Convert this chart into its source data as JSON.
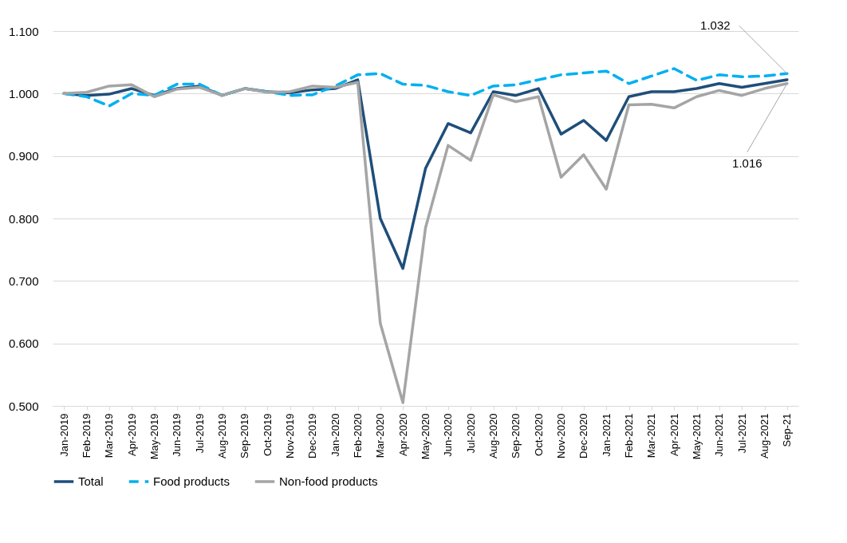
{
  "chart_data": {
    "type": "line",
    "categories": [
      "Jan-2019",
      "Feb-2019",
      "Mar-2019",
      "Apr-2019",
      "May-2019",
      "Jun-2019",
      "Jul-2019",
      "Aug-2019",
      "Sep-2019",
      "Oct-2019",
      "Nov-2019",
      "Dec-2019",
      "Jan-2020",
      "Feb-2020",
      "Mar-2020",
      "Apr-2020",
      "May-2020",
      "Jun-2020",
      "Jul-2020",
      "Aug-2020",
      "Sep-2020",
      "Oct-2020",
      "Nov-2020",
      "Dec-2020",
      "Jan-2021",
      "Feb-2021",
      "Mar-2021",
      "Apr-2021",
      "May-2021",
      "Jun-2021",
      "Jul-2021",
      "Aug-2021",
      "Sep-21"
    ],
    "series": [
      {
        "name": "Total",
        "color": "#1f4e79",
        "line_style": "solid",
        "values": [
          1.0,
          0.997,
          0.999,
          1.008,
          0.997,
          1.008,
          1.012,
          0.997,
          1.008,
          1.003,
          1.001,
          1.006,
          1.008,
          1.022,
          0.8,
          0.72,
          0.88,
          0.952,
          0.937,
          1.003,
          0.997,
          1.008,
          0.935,
          0.957,
          0.925,
          0.995,
          1.003,
          1.003,
          1.008,
          1.016,
          1.01,
          1.016,
          1.022
        ]
      },
      {
        "name": "Food products",
        "color": "#00b0f0",
        "line_style": "dashed",
        "values": [
          1.0,
          0.995,
          0.98,
          1.0,
          0.997,
          1.015,
          1.015,
          0.997,
          1.008,
          1.003,
          0.997,
          0.998,
          1.012,
          1.03,
          1.032,
          1.015,
          1.013,
          1.003,
          0.997,
          1.012,
          1.014,
          1.022,
          1.03,
          1.033,
          1.036,
          1.016,
          1.028,
          1.04,
          1.021,
          1.03,
          1.027,
          1.028,
          1.032
        ]
      },
      {
        "name": "Non-food products",
        "color": "#a5a5a5",
        "line_style": "solid",
        "values": [
          1.0,
          1.002,
          1.012,
          1.014,
          0.995,
          1.007,
          1.01,
          0.997,
          1.008,
          1.002,
          1.003,
          1.012,
          1.01,
          1.018,
          0.632,
          0.505,
          0.785,
          0.917,
          0.893,
          0.998,
          0.987,
          0.995,
          0.866,
          0.902,
          0.847,
          0.982,
          0.983,
          0.977,
          0.995,
          1.005,
          0.997,
          1.008,
          1.016
        ]
      }
    ],
    "ylim": [
      0.5,
      1.1
    ],
    "yticks": [
      {
        "value": 0.5,
        "label": "0.500"
      },
      {
        "value": 0.6,
        "label": "0.600"
      },
      {
        "value": 0.7,
        "label": "0.700"
      },
      {
        "value": 0.8,
        "label": "0.800"
      },
      {
        "value": 0.9,
        "label": "0.900"
      },
      {
        "value": 1.0,
        "label": "1.000"
      },
      {
        "value": 1.1,
        "label": "1.100"
      }
    ],
    "grid": "y",
    "legend": "bottom",
    "marker": "none",
    "annotations": [
      {
        "text": "1.032",
        "x": "Sep-21",
        "y": 1.032
      },
      {
        "text": "1.016",
        "x": "Sep-21",
        "y": 1.016
      }
    ]
  }
}
